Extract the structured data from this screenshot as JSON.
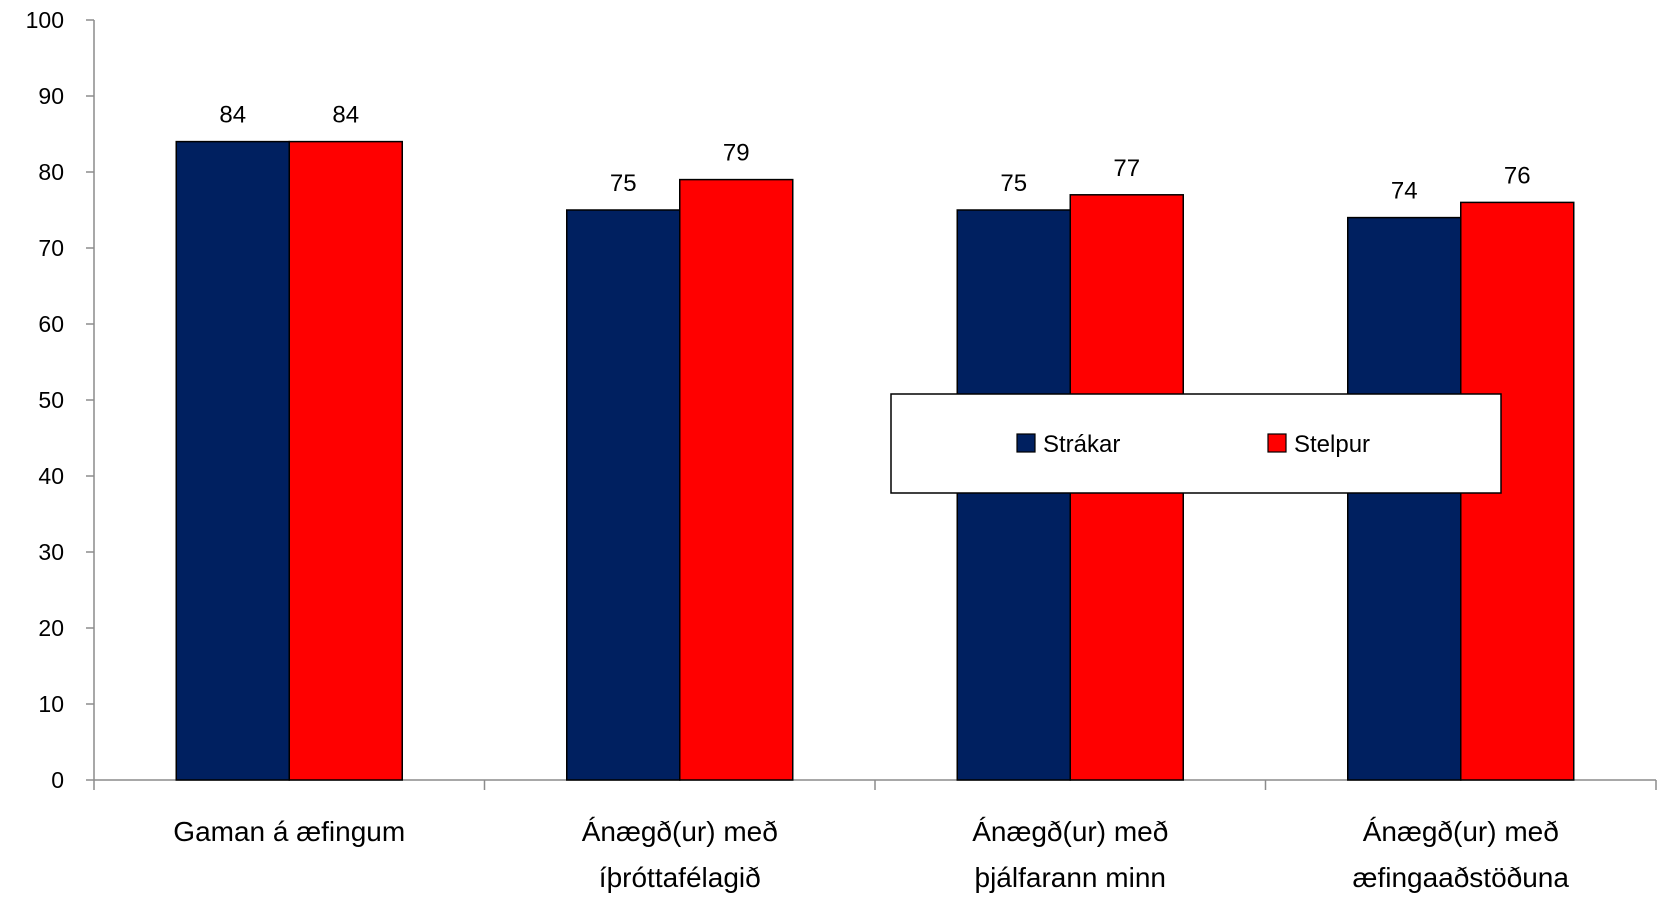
{
  "chart_data": {
    "type": "bar",
    "title": "",
    "xlabel": "",
    "ylabel": "",
    "ylim": [
      0,
      100
    ],
    "yticks": [
      0,
      10,
      20,
      30,
      40,
      50,
      60,
      70,
      80,
      90,
      100
    ],
    "grid": false,
    "legend_position": "center-right",
    "categories": [
      [
        "Gaman á æfingum"
      ],
      [
        "Ánægð(ur) með",
        "íþróttafélagið"
      ],
      [
        "Ánægð(ur) með",
        "þjálfarann minn"
      ],
      [
        "Ánægð(ur) með",
        "æfingaaðstöðuna"
      ]
    ],
    "series": [
      {
        "name": "Strákar",
        "color": "#002060",
        "values": [
          84,
          75,
          75,
          74
        ]
      },
      {
        "name": "Stelpur",
        "color": "#FF0000",
        "values": [
          84,
          79,
          77,
          76
        ]
      }
    ]
  }
}
